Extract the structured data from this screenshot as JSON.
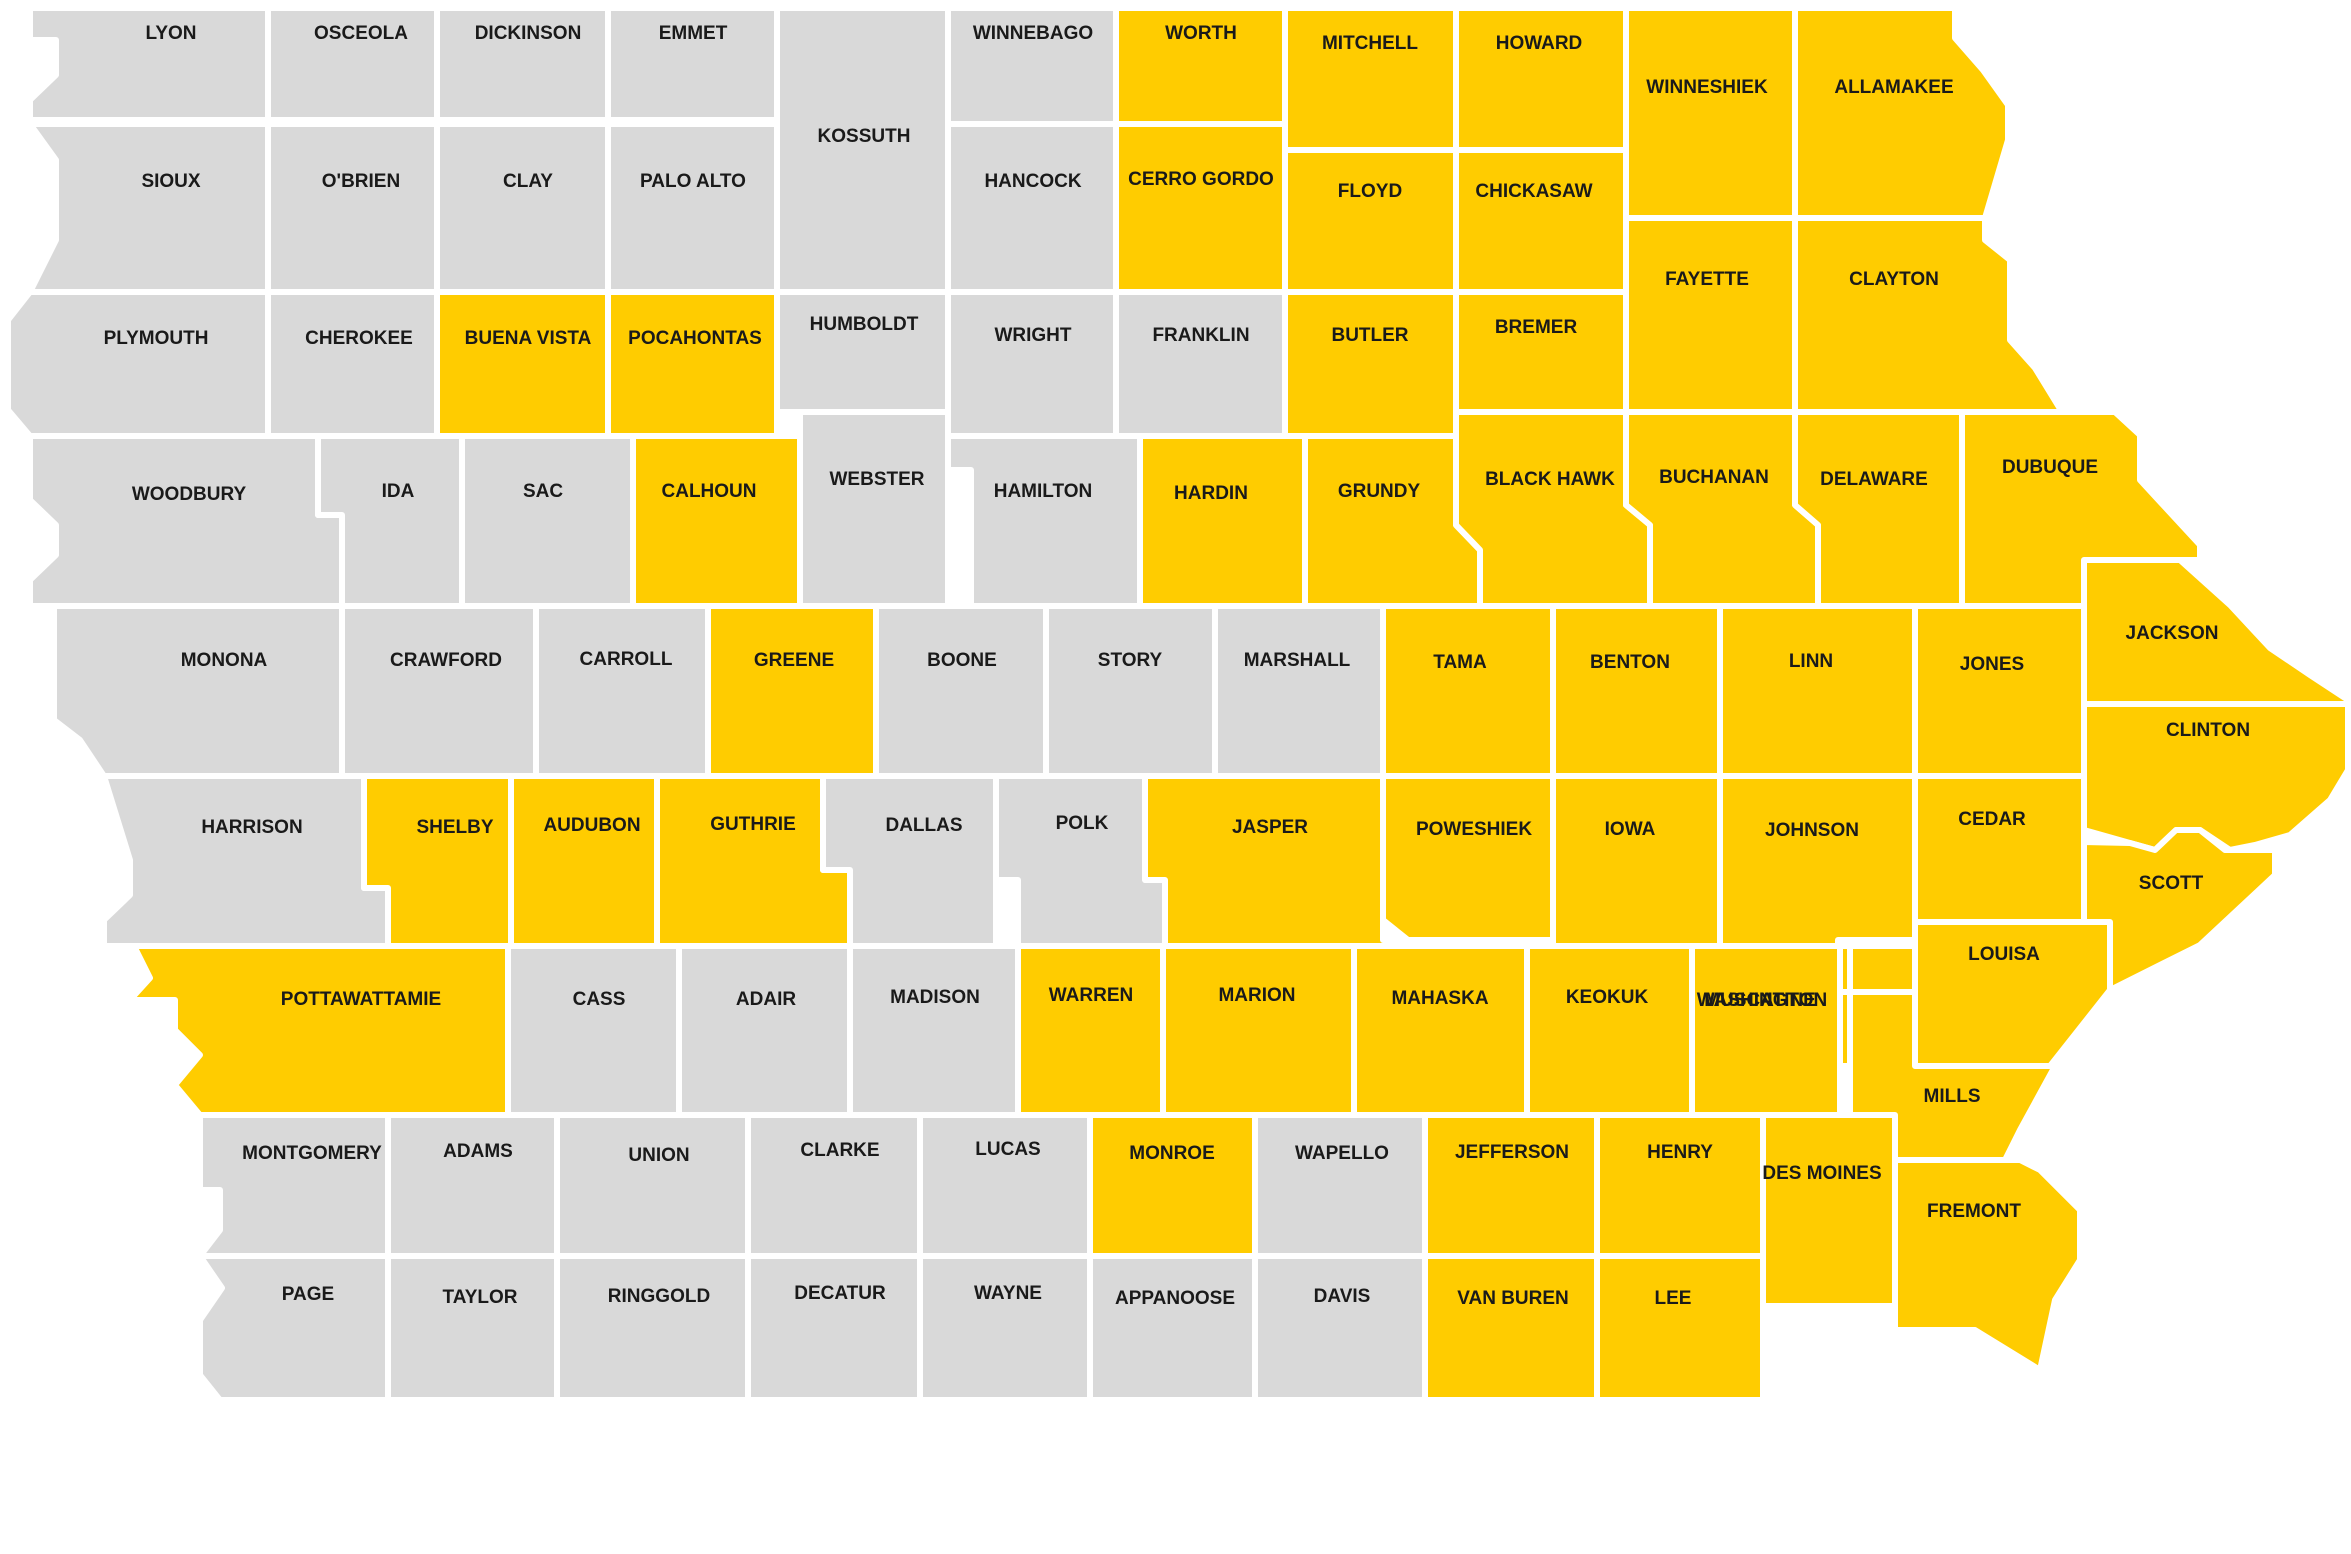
{
  "colors": {
    "highlighted": "#FFCC00",
    "other": "#D9D9D9"
  },
  "counties": [
    {
      "label": "LYON",
      "highlighted": false
    },
    {
      "label": "OSCEOLA",
      "highlighted": false
    },
    {
      "label": "DICKINSON",
      "highlighted": false
    },
    {
      "label": "EMMET",
      "highlighted": false
    },
    {
      "label": "KOSSUTH",
      "highlighted": false
    },
    {
      "label": "WINNEBAGO",
      "highlighted": false
    },
    {
      "label": "WORTH",
      "highlighted": true
    },
    {
      "label": "MITCHELL",
      "highlighted": true
    },
    {
      "label": "HOWARD",
      "highlighted": true
    },
    {
      "label": "WINNESHIEK",
      "highlighted": true
    },
    {
      "label": "ALLAMAKEE",
      "highlighted": true
    },
    {
      "label": "SIOUX",
      "highlighted": false
    },
    {
      "label": "O'BRIEN",
      "highlighted": false
    },
    {
      "label": "CLAY",
      "highlighted": false
    },
    {
      "label": "PALO ALTO",
      "highlighted": false
    },
    {
      "label": "HANCOCK",
      "highlighted": false
    },
    {
      "label": "CERRO GORDO",
      "highlighted": true
    },
    {
      "label": "FLOYD",
      "highlighted": true
    },
    {
      "label": "CHICKASAW",
      "highlighted": true
    },
    {
      "label": "FAYETTE",
      "highlighted": true
    },
    {
      "label": "CLAYTON",
      "highlighted": true
    },
    {
      "label": "PLYMOUTH",
      "highlighted": false
    },
    {
      "label": "CHEROKEE",
      "highlighted": false
    },
    {
      "label": "BUENA VISTA",
      "highlighted": true
    },
    {
      "label": "POCAHONTAS",
      "highlighted": true
    },
    {
      "label": "HUMBOLDT",
      "highlighted": false
    },
    {
      "label": "WRIGHT",
      "highlighted": false
    },
    {
      "label": "FRANKLIN",
      "highlighted": false
    },
    {
      "label": "BUTLER",
      "highlighted": true
    },
    {
      "label": "BREMER",
      "highlighted": true
    },
    {
      "label": "WOODBURY",
      "highlighted": false
    },
    {
      "label": "IDA",
      "highlighted": false
    },
    {
      "label": "SAC",
      "highlighted": false
    },
    {
      "label": "CALHOUN",
      "highlighted": true
    },
    {
      "label": "WEBSTER",
      "highlighted": false
    },
    {
      "label": "HAMILTON",
      "highlighted": false
    },
    {
      "label": "HARDIN",
      "highlighted": true
    },
    {
      "label": "GRUNDY",
      "highlighted": true
    },
    {
      "label": "BLACK HAWK",
      "highlighted": true
    },
    {
      "label": "BUCHANAN",
      "highlighted": true
    },
    {
      "label": "DELAWARE",
      "highlighted": true
    },
    {
      "label": "DUBUQUE",
      "highlighted": true
    },
    {
      "label": "MONONA",
      "highlighted": false
    },
    {
      "label": "CRAWFORD",
      "highlighted": false
    },
    {
      "label": "CARROLL",
      "highlighted": false
    },
    {
      "label": "GREENE",
      "highlighted": true
    },
    {
      "label": "BOONE",
      "highlighted": false
    },
    {
      "label": "STORY",
      "highlighted": false
    },
    {
      "label": "MARSHALL",
      "highlighted": false
    },
    {
      "label": "TAMA",
      "highlighted": true
    },
    {
      "label": "BENTON",
      "highlighted": true
    },
    {
      "label": "LINN",
      "highlighted": true
    },
    {
      "label": "JONES",
      "highlighted": true
    },
    {
      "label": "JACKSON",
      "highlighted": true
    },
    {
      "label": "CLINTON",
      "highlighted": true
    },
    {
      "label": "HARRISON",
      "highlighted": false
    },
    {
      "label": "SHELBY",
      "highlighted": true
    },
    {
      "label": "AUDUBON",
      "highlighted": true
    },
    {
      "label": "GUTHRIE",
      "highlighted": true
    },
    {
      "label": "DALLAS",
      "highlighted": false
    },
    {
      "label": "POLK",
      "highlighted": false
    },
    {
      "label": "JASPER",
      "highlighted": true
    },
    {
      "label": "POWESHIEK",
      "highlighted": true
    },
    {
      "label": "IOWA",
      "highlighted": true
    },
    {
      "label": "JOHNSON",
      "highlighted": true
    },
    {
      "label": "CEDAR",
      "highlighted": true
    },
    {
      "label": "SCOTT",
      "highlighted": true
    },
    {
      "label": "POTTAWATTAMIE",
      "highlighted": true
    },
    {
      "label": "CASS",
      "highlighted": false
    },
    {
      "label": "ADAIR",
      "highlighted": false
    },
    {
      "label": "MADISON",
      "highlighted": false
    },
    {
      "label": "WARREN",
      "highlighted": true
    },
    {
      "label": "MARION",
      "highlighted": true
    },
    {
      "label": "MAHASKA",
      "highlighted": true
    },
    {
      "label": "KEOKUK",
      "highlighted": true
    },
    {
      "label": "WASHINGTON",
      "highlighted": true
    },
    {
      "label": "MUSCATINE",
      "highlighted": true
    },
    {
      "label": "LOUISA",
      "highlighted": true
    },
    {
      "label": "MILLS",
      "highlighted": true
    },
    {
      "label": "MONTGOMERY",
      "highlighted": false
    },
    {
      "label": "ADAMS",
      "highlighted": false
    },
    {
      "label": "UNION",
      "highlighted": false
    },
    {
      "label": "CLARKE",
      "highlighted": false
    },
    {
      "label": "LUCAS",
      "highlighted": false
    },
    {
      "label": "MONROE",
      "highlighted": true
    },
    {
      "label": "WAPELLO",
      "highlighted": false
    },
    {
      "label": "JEFFERSON",
      "highlighted": true
    },
    {
      "label": "HENRY",
      "highlighted": true
    },
    {
      "label": "DES MOINES",
      "highlighted": true
    },
    {
      "label": "FREMONT",
      "highlighted": true
    },
    {
      "label": "PAGE",
      "highlighted": false
    },
    {
      "label": "TAYLOR",
      "highlighted": false
    },
    {
      "label": "RINGGOLD",
      "highlighted": false
    },
    {
      "label": "DECATUR",
      "highlighted": false
    },
    {
      "label": "WAYNE",
      "highlighted": false
    },
    {
      "label": "APPANOOSE",
      "highlighted": false
    },
    {
      "label": "DAVIS",
      "highlighted": false
    },
    {
      "label": "VAN BUREN",
      "highlighted": true
    },
    {
      "label": "LEE",
      "highlighted": true
    }
  ]
}
